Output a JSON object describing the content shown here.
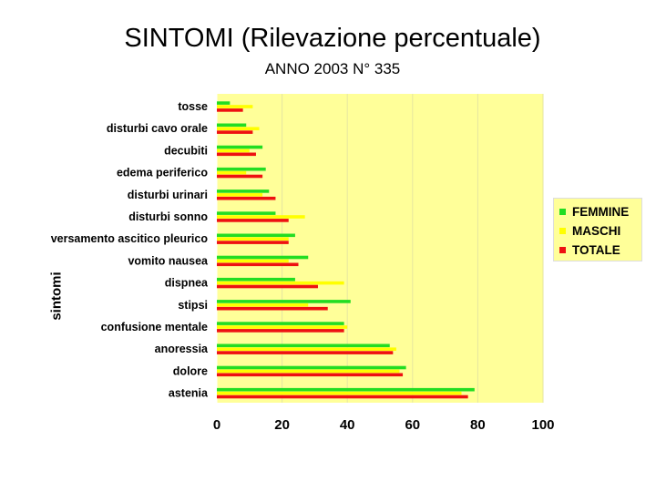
{
  "title": "SINTOMI (Rilevazione percentuale)",
  "subtitle": "ANNO 2003 N° 335",
  "colors": {
    "plot_background": "#ffff99",
    "FEMMINE": "#22dd22",
    "MASCHI": "#ffff00",
    "TOTALE": "#ee1111"
  },
  "chart_data": {
    "type": "bar",
    "orientation": "horizontal",
    "ylabel": "sintomi",
    "xlabel": "",
    "xlim": [
      0,
      100
    ],
    "xticks": [
      0,
      20,
      40,
      60,
      80,
      100
    ],
    "grid": true,
    "legend_position": "right",
    "categories": [
      "tosse",
      "disturbi cavo orale",
      "decubiti",
      "edema periferico",
      "disturbi urinari",
      "disturbi sonno",
      "versamento ascitico pleurico",
      "vomito nausea",
      "dispnea",
      "stipsi",
      "confusione mentale",
      "anoressia",
      "dolore",
      "astenia"
    ],
    "series": [
      {
        "name": "FEMMINE",
        "values": [
          4,
          9,
          14,
          15,
          16,
          18,
          24,
          28,
          24,
          41,
          39,
          53,
          58,
          79
        ]
      },
      {
        "name": "MASCHI",
        "values": [
          11,
          13,
          10,
          9,
          14,
          27,
          22,
          22,
          39,
          28,
          40,
          55,
          56,
          75
        ]
      },
      {
        "name": "TOTALE",
        "values": [
          8,
          11,
          12,
          14,
          18,
          22,
          22,
          25,
          31,
          34,
          39,
          54,
          57,
          77
        ]
      }
    ]
  }
}
